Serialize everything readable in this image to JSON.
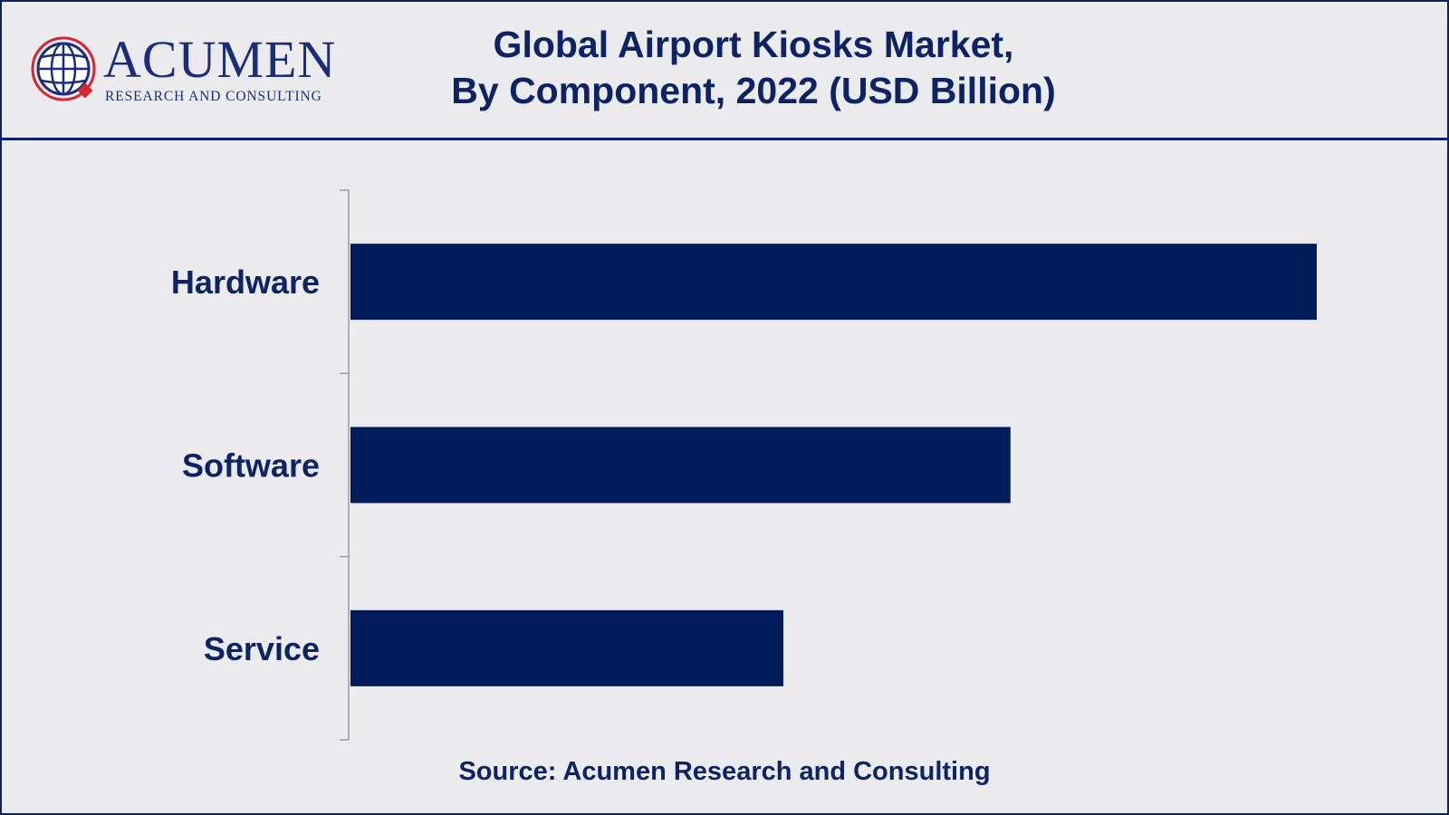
{
  "header": {
    "logo_word": "ACUMEN",
    "logo_subtitle": "RESEARCH AND CONSULTING",
    "title_line1": "Global Airport Kiosks Market,",
    "title_line2": "By Component, 2022 (USD Billion)"
  },
  "chart_data": {
    "type": "bar",
    "orientation": "horizontal",
    "categories": [
      "Hardware",
      "Software",
      "Service"
    ],
    "values": [
      1.0,
      0.683,
      0.448
    ],
    "xlim": [
      0,
      1.0
    ],
    "grid": false,
    "legend": "none"
  },
  "colors": {
    "bar": "#001b5a",
    "text": "#0d2366",
    "background": "#ebebed",
    "logo_red": "#d9252f"
  },
  "footer": {
    "source": "Source: Acumen Research and Consulting"
  }
}
